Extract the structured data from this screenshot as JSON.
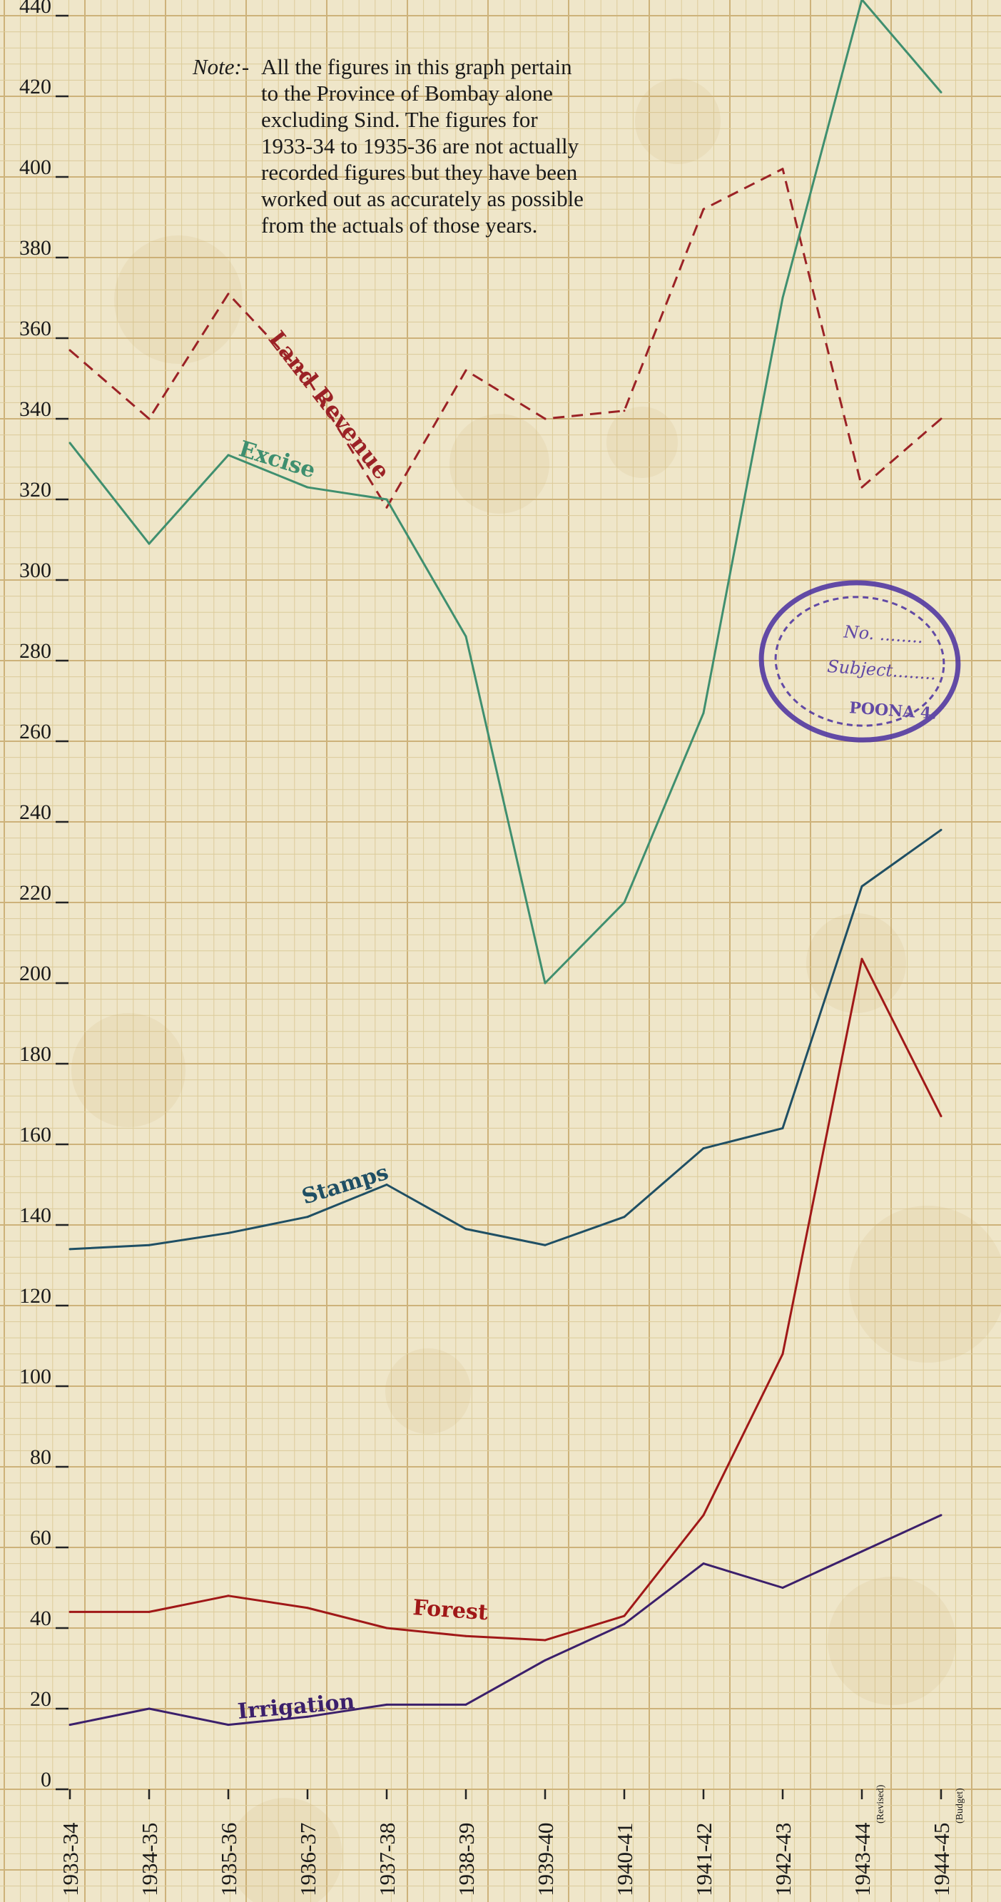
{
  "chart_data": {
    "type": "line",
    "note": {
      "prefix": "Note:-",
      "lines": [
        "All the figures in this graph pertain",
        "to the Province of Bombay alone",
        "excluding Sind. The figures for",
        "1933-34 to 1935-36 are not actually",
        "recorded figures but they have been",
        "worked out as accurately as possible",
        "from the actuals of those years."
      ]
    },
    "categories": [
      "1933-34",
      "1934-35",
      "1935-36",
      "1936-37",
      "1937-38",
      "1938-39",
      "1939-40",
      "1940-41",
      "1941-42",
      "1942-43",
      "1943-44",
      "1944-45"
    ],
    "category_notes": [
      "",
      "",
      "",
      "",
      "",
      "",
      "",
      "",
      "",
      "",
      "(Revised)",
      "(Budget)"
    ],
    "ylim": [
      0,
      440
    ],
    "yticks": [
      0,
      20,
      40,
      60,
      80,
      100,
      120,
      140,
      160,
      180,
      200,
      220,
      240,
      260,
      280,
      300,
      320,
      340,
      360,
      380,
      400,
      420,
      440
    ],
    "grid": true,
    "series": [
      {
        "name": "Land Revenue",
        "color": "#9b2226",
        "dashed": true,
        "values": [
          357,
          340,
          371,
          350,
          318,
          352,
          340,
          342,
          392,
          402,
          323,
          340
        ]
      },
      {
        "name": "Excise",
        "color": "#3f8f6f",
        "dashed": false,
        "values": [
          334,
          309,
          331,
          323,
          320,
          286,
          200,
          220,
          267,
          370,
          444,
          421
        ]
      },
      {
        "name": "Stamps",
        "color": "#1f4f64",
        "dashed": false,
        "values": [
          134,
          135,
          138,
          142,
          150,
          139,
          135,
          142,
          159,
          164,
          224,
          238
        ]
      },
      {
        "name": "Forest",
        "color": "#a01818",
        "dashed": false,
        "values": [
          44,
          44,
          48,
          45,
          40,
          38,
          37,
          43,
          68,
          108,
          206,
          167
        ]
      },
      {
        "name": "Irrigation",
        "color": "#3b1f6b",
        "dashed": false,
        "values": [
          16,
          20,
          16,
          18,
          21,
          21,
          32,
          41,
          56,
          50,
          59,
          68
        ]
      }
    ]
  },
  "stamp": {
    "lines": [
      "No. ........",
      "Subject........",
      "POONA 4."
    ],
    "color": "#4a2fa0"
  }
}
